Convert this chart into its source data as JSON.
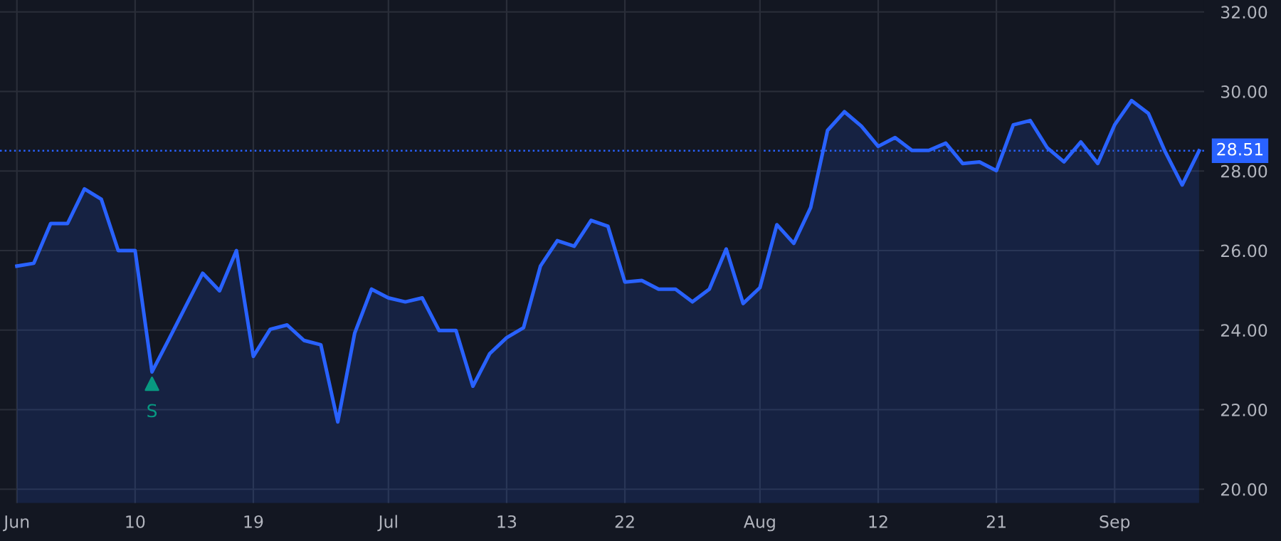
{
  "chart_data": {
    "type": "area",
    "categories": [
      "Jun",
      null,
      null,
      null,
      null,
      null,
      null,
      "10",
      null,
      null,
      null,
      null,
      null,
      null,
      "19",
      null,
      null,
      null,
      null,
      null,
      null,
      null,
      "Jul",
      null,
      null,
      null,
      null,
      null,
      null,
      "13",
      null,
      null,
      null,
      null,
      null,
      null,
      "22",
      null,
      null,
      null,
      null,
      null,
      null,
      null,
      "Aug",
      null,
      null,
      null,
      null,
      null,
      null,
      "12",
      null,
      null,
      null,
      null,
      null,
      null,
      "21",
      null,
      null,
      null,
      null,
      null,
      null,
      "Sep",
      null,
      null,
      null,
      null,
      null
    ],
    "series": [
      {
        "color": "#2962ff",
        "values": [
          25.61,
          25.68,
          26.68,
          26.68,
          27.55,
          27.29,
          26.0,
          26.0,
          22.95,
          23.77,
          24.6,
          25.43,
          24.99,
          26.0,
          23.34,
          24.02,
          24.13,
          23.74,
          23.63,
          21.69,
          23.92,
          25.03,
          24.81,
          24.71,
          24.81,
          23.99,
          23.99,
          22.59,
          23.41,
          23.81,
          24.06,
          25.61,
          26.25,
          26.11,
          26.76,
          26.61,
          25.21,
          25.25,
          25.03,
          25.03,
          24.71,
          25.03,
          26.04,
          24.67,
          25.07,
          26.65,
          26.18,
          27.08,
          29.02,
          29.49,
          29.13,
          28.62,
          28.84,
          28.52,
          28.52,
          28.7,
          28.19,
          28.23,
          28.01,
          29.16,
          29.27,
          28.59,
          28.23,
          28.73,
          28.19,
          29.16,
          29.77,
          29.45,
          28.48,
          27.65,
          28.51
        ]
      },
      {
        "type": "scatter",
        "name": "S",
        "color": "#089981",
        "marker": "triangle",
        "values": [
          null,
          null,
          null,
          null,
          null,
          null,
          null,
          null,
          22.65,
          null,
          null,
          null,
          null,
          null,
          null,
          null,
          null,
          null,
          null,
          null,
          null,
          null,
          null,
          null,
          null,
          null,
          null,
          null,
          null,
          null,
          null,
          null,
          null,
          null,
          null,
          null,
          null,
          null,
          null,
          null,
          null,
          null,
          null,
          null,
          null,
          null,
          null,
          null,
          null,
          null,
          null,
          null,
          null,
          null,
          null,
          null,
          null,
          null,
          null,
          null,
          null,
          null,
          null,
          null,
          null,
          null,
          null,
          null,
          null,
          null,
          null
        ]
      }
    ],
    "ylim": [
      19.65,
      32.3
    ],
    "yticks": [
      {
        "value": 20,
        "label": "20.00"
      },
      {
        "value": 22,
        "label": "22.00"
      },
      {
        "value": 24,
        "label": "24.00"
      },
      {
        "value": 26,
        "label": "26.00"
      },
      {
        "value": 28,
        "label": "28.00"
      },
      {
        "value": 30,
        "label": "30.00"
      },
      {
        "value": 32,
        "label": "32.00"
      }
    ],
    "ref_lines": [
      {
        "axis": "y",
        "value": 28.51,
        "label": "28.51",
        "color": "#2962ff",
        "line_style": "dotted"
      }
    ],
    "grid": true,
    "legend": false
  }
}
